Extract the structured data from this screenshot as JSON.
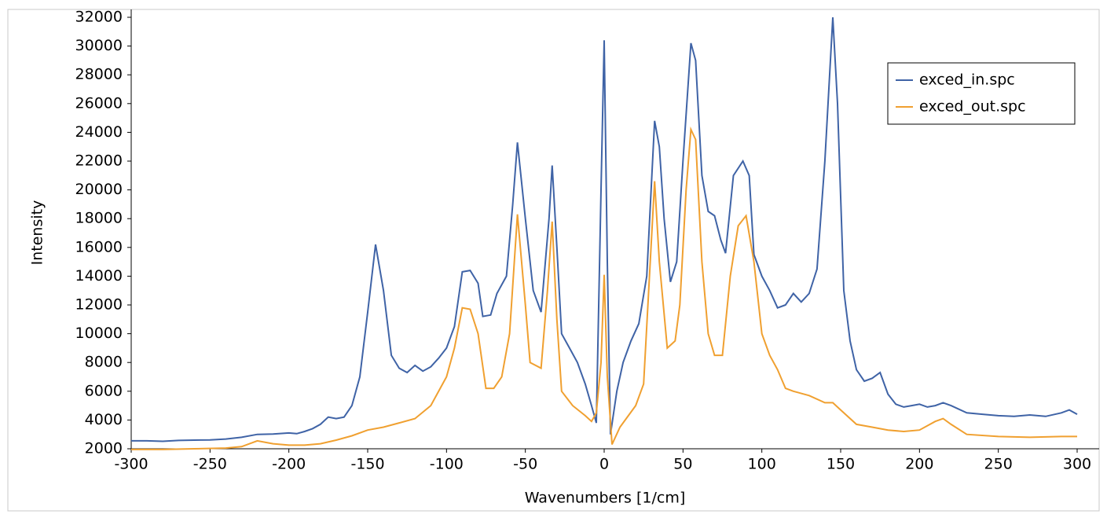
{
  "chart_data": {
    "type": "line",
    "xlabel": "Wavenumbers [1/cm]",
    "ylabel": "Intensity",
    "xlim": [
      -300,
      300
    ],
    "xticks": [
      -300,
      -250,
      -200,
      -150,
      -100,
      -50,
      0,
      50,
      100,
      150,
      200,
      250,
      300
    ],
    "ylim": [
      2000,
      32000
    ],
    "yticks": [
      2000,
      4000,
      6000,
      8000,
      10000,
      12000,
      14000,
      16000,
      18000,
      20000,
      22000,
      24000,
      26000,
      28000,
      30000,
      32000
    ],
    "legend": "upper right",
    "series": [
      {
        "name": "exced_in.spc",
        "color": "#3f63a6",
        "x": [
          -300,
          -290,
          -280,
          -270,
          -260,
          -250,
          -240,
          -230,
          -220,
          -210,
          -200,
          -195,
          -190,
          -185,
          -180,
          -175,
          -170,
          -165,
          -160,
          -155,
          -150,
          -145,
          -140,
          -135,
          -130,
          -125,
          -120,
          -115,
          -110,
          -105,
          -100,
          -95,
          -90,
          -85,
          -80,
          -77,
          -72,
          -68,
          -62,
          -58,
          -55,
          -50,
          -45,
          -40,
          -35,
          -33,
          -30,
          -27,
          -22,
          -17,
          -12,
          -8,
          -5,
          -2,
          0,
          2,
          4,
          8,
          12,
          17,
          22,
          27,
          32,
          35,
          38,
          42,
          46,
          50,
          55,
          58,
          62,
          66,
          70,
          74,
          77,
          82,
          88,
          92,
          95,
          100,
          105,
          110,
          115,
          120,
          125,
          130,
          135,
          140,
          145,
          148,
          152,
          156,
          160,
          165,
          170,
          175,
          180,
          185,
          190,
          195,
          200,
          205,
          210,
          215,
          220,
          230,
          240,
          250,
          260,
          270,
          280,
          290,
          295,
          300
        ],
        "values": [
          2550,
          2550,
          2520,
          2580,
          2600,
          2620,
          2680,
          2800,
          3000,
          3020,
          3100,
          3050,
          3200,
          3400,
          3700,
          4200,
          4100,
          4200,
          5000,
          7000,
          11500,
          16200,
          13000,
          8500,
          7600,
          7300,
          7800,
          7400,
          7700,
          8300,
          9000,
          10500,
          14300,
          14400,
          13500,
          11200,
          11300,
          12800,
          14000,
          19000,
          23300,
          18000,
          13000,
          11500,
          18000,
          21700,
          16000,
          10000,
          9000,
          8000,
          6500,
          5000,
          3800,
          20000,
          30400,
          15000,
          3000,
          6000,
          8000,
          9500,
          10700,
          14000,
          24800,
          23000,
          18000,
          13600,
          15000,
          22000,
          30200,
          29000,
          21000,
          18500,
          18200,
          16500,
          15600,
          21000,
          22000,
          21000,
          15500,
          14000,
          13000,
          11800,
          12000,
          12800,
          12200,
          12800,
          14500,
          22000,
          32000,
          26000,
          13000,
          9500,
          7500,
          6700,
          6900,
          7300,
          5800,
          5100,
          4900,
          5000,
          5100,
          4900,
          5000,
          5200,
          5000,
          4500,
          4400,
          4300,
          4250,
          4350,
          4250,
          4500,
          4700,
          4400
        ]
      },
      {
        "name": "exced_out.spc",
        "color": "#f0a030",
        "x": [
          -300,
          -280,
          -260,
          -240,
          -230,
          -220,
          -210,
          -200,
          -190,
          -180,
          -170,
          -160,
          -150,
          -140,
          -130,
          -120,
          -110,
          -100,
          -95,
          -90,
          -85,
          -80,
          -75,
          -70,
          -65,
          -60,
          -55,
          -50,
          -47,
          -40,
          -36,
          -33,
          -30,
          -27,
          -20,
          -12,
          -8,
          -5,
          -2,
          0,
          2,
          5,
          10,
          20,
          25,
          32,
          35,
          40,
          45,
          48,
          52,
          55,
          58,
          62,
          66,
          70,
          75,
          80,
          85,
          90,
          95,
          100,
          105,
          110,
          115,
          120,
          130,
          140,
          145,
          150,
          160,
          170,
          180,
          190,
          200,
          210,
          215,
          220,
          230,
          250,
          270,
          290,
          300
        ],
        "values": [
          1950,
          1950,
          2000,
          2050,
          2150,
          2550,
          2350,
          2250,
          2250,
          2350,
          2600,
          2900,
          3300,
          3500,
          3800,
          4100,
          5000,
          7000,
          9000,
          11800,
          11700,
          10000,
          6200,
          6200,
          7000,
          10000,
          18300,
          12000,
          8000,
          7600,
          13000,
          17800,
          11000,
          6000,
          5000,
          4300,
          3900,
          4500,
          8000,
          14100,
          7000,
          2300,
          3500,
          5000,
          6500,
          20600,
          15000,
          9000,
          9500,
          12000,
          20000,
          24200,
          23500,
          15000,
          10000,
          8500,
          8500,
          14000,
          17500,
          18200,
          15000,
          10000,
          8500,
          7500,
          6200,
          6000,
          5700,
          5200,
          5200,
          4700,
          3700,
          3500,
          3300,
          3200,
          3300,
          3900,
          4100,
          3700,
          3000,
          2850,
          2800,
          2850,
          2850
        ]
      }
    ]
  }
}
